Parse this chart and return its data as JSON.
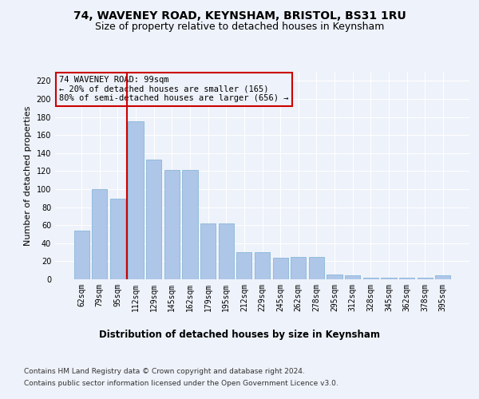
{
  "title": "74, WAVENEY ROAD, KEYNSHAM, BRISTOL, BS31 1RU",
  "subtitle": "Size of property relative to detached houses in Keynsham",
  "xlabel": "Distribution of detached houses by size in Keynsham",
  "ylabel": "Number of detached properties",
  "categories": [
    "62sqm",
    "79sqm",
    "95sqm",
    "112sqm",
    "129sqm",
    "145sqm",
    "162sqm",
    "179sqm",
    "195sqm",
    "212sqm",
    "229sqm",
    "245sqm",
    "262sqm",
    "278sqm",
    "295sqm",
    "312sqm",
    "328sqm",
    "345sqm",
    "362sqm",
    "378sqm",
    "395sqm"
  ],
  "values": [
    54,
    100,
    89,
    175,
    133,
    121,
    121,
    62,
    62,
    30,
    30,
    24,
    25,
    25,
    5,
    4,
    2,
    2,
    2,
    2,
    4
  ],
  "bar_color": "#aec6e8",
  "bar_edgecolor": "#7aafd4",
  "vline_x_idx": 2,
  "vline_color": "#cc0000",
  "annotation_text": "74 WAVENEY ROAD: 99sqm\n← 20% of detached houses are smaller (165)\n80% of semi-detached houses are larger (656) →",
  "annotation_box_edgecolor": "#cc0000",
  "ylim": [
    0,
    230
  ],
  "yticks": [
    0,
    20,
    40,
    60,
    80,
    100,
    120,
    140,
    160,
    180,
    200,
    220
  ],
  "background_color": "#eef2fa",
  "grid_color": "#ffffff",
  "footer_line1": "Contains HM Land Registry data © Crown copyright and database right 2024.",
  "footer_line2": "Contains public sector information licensed under the Open Government Licence v3.0.",
  "title_fontsize": 10,
  "subtitle_fontsize": 9,
  "xlabel_fontsize": 8.5,
  "ylabel_fontsize": 8,
  "tick_fontsize": 7,
  "annotation_fontsize": 7.5,
  "footer_fontsize": 6.5
}
